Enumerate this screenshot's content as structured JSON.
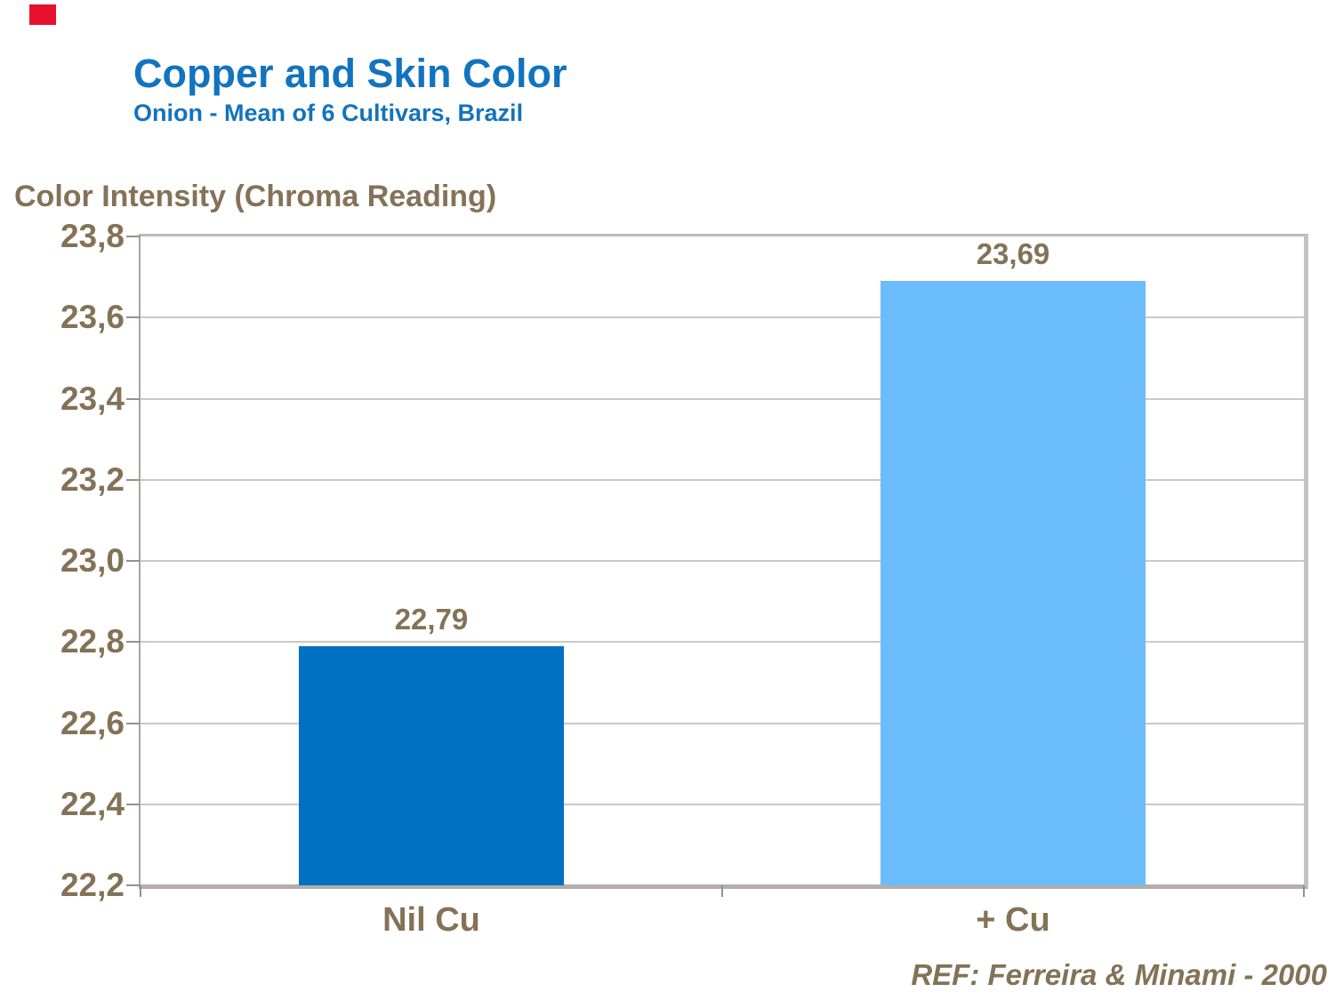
{
  "footer": {
    "reference": "REF: Ferreira & Minami - 2000"
  },
  "colors": {
    "title_blue": "#1273BE",
    "text_brown": "#847257",
    "gridline": "#CBC9C6",
    "corner_marker_red": "#E8112D",
    "bar_nil_cu": "#0071C2",
    "bar_plus_cu": "#6ABCFA"
  },
  "chart_data": {
    "type": "bar",
    "title": "Copper and Skin Color",
    "subtitle": "Onion - Mean of 6 Cultivars, Brazil",
    "ylabel": "Color Intensity (Chroma Reading)",
    "xlabel": "",
    "categories": [
      "Nil Cu",
      "+ Cu"
    ],
    "values": [
      22.79,
      23.69
    ],
    "value_labels": [
      "22,79",
      "23,69"
    ],
    "bar_colors": [
      "#0071C2",
      "#6ABCFA"
    ],
    "ylim": [
      22.2,
      23.8
    ],
    "ytick_step": 0.2,
    "ytick_labels": [
      "22,2",
      "22,4",
      "22,6",
      "22,8",
      "23,0",
      "23,2",
      "23,4",
      "23,6",
      "23,8"
    ],
    "grid": true,
    "legend": false,
    "decimal_separator": ","
  }
}
